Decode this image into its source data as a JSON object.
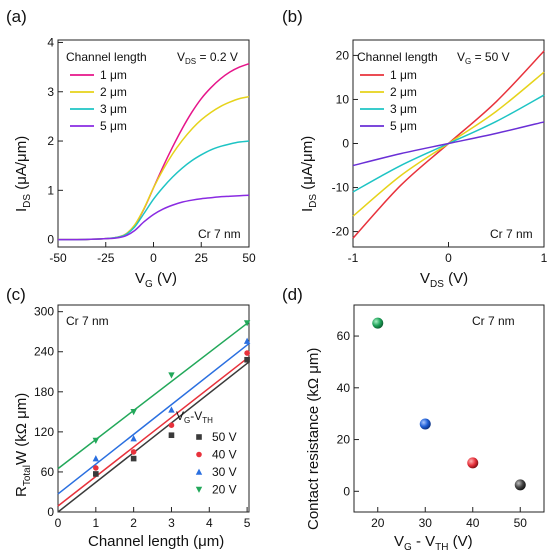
{
  "chart_data": [
    {
      "type": "line",
      "panel_label": "(a)",
      "xlabel": "V",
      "xlabel_sub": "G",
      "xlabel_unit": " (V)",
      "ylabel": "I",
      "ylabel_sub": "DS",
      "ylabel_unit": " (μA/μm)",
      "xlim": [
        -50,
        50
      ],
      "ylim": [
        -0.15,
        4.05
      ],
      "xticks": [
        "-50",
        "-25",
        "0",
        "25",
        "50"
      ],
      "xtick_values": [
        -50,
        -25,
        0,
        25,
        50
      ],
      "yticks": [
        "0",
        "1",
        "2",
        "3",
        "4"
      ],
      "ytick_values": [
        0,
        1,
        2,
        3,
        4
      ],
      "legend_title": "Channel length",
      "condition_text": "V",
      "condition_sub": "DS",
      "condition_value": " = 0.2 V",
      "note": "Cr 7 nm",
      "x": [
        -50,
        -40,
        -30,
        -25,
        -20,
        -15,
        -10,
        -5,
        0,
        5,
        10,
        15,
        20,
        25,
        30,
        35,
        40,
        45,
        50
      ],
      "series": [
        {
          "name": "1 μm",
          "color": "#e6158a",
          "values": [
            0.0,
            0.0,
            0.01,
            0.02,
            0.04,
            0.1,
            0.28,
            0.62,
            1.05,
            1.48,
            1.88,
            2.25,
            2.58,
            2.86,
            3.08,
            3.26,
            3.4,
            3.5,
            3.57
          ]
        },
        {
          "name": "2 μm",
          "color": "#e6d31a",
          "values": [
            0.0,
            0.0,
            0.01,
            0.02,
            0.04,
            0.1,
            0.29,
            0.63,
            1.05,
            1.42,
            1.74,
            2.01,
            2.24,
            2.43,
            2.58,
            2.7,
            2.79,
            2.86,
            2.9
          ]
        },
        {
          "name": "3 μm",
          "color": "#1ec4c4",
          "values": [
            0.0,
            0.0,
            0.01,
            0.02,
            0.04,
            0.09,
            0.25,
            0.53,
            0.82,
            1.06,
            1.27,
            1.45,
            1.6,
            1.72,
            1.82,
            1.89,
            1.94,
            1.98,
            2.0
          ]
        },
        {
          "name": "5 μm",
          "color": "#8a2be2",
          "values": [
            0.0,
            0.0,
            0.01,
            0.02,
            0.03,
            0.07,
            0.18,
            0.36,
            0.51,
            0.62,
            0.7,
            0.76,
            0.8,
            0.83,
            0.85,
            0.87,
            0.88,
            0.89,
            0.9
          ]
        }
      ]
    },
    {
      "type": "line",
      "panel_label": "(b)",
      "xlabel": "V",
      "xlabel_sub": "DS",
      "xlabel_unit": " (V)",
      "ylabel": "I",
      "ylabel_sub": "DS",
      "ylabel_unit": " (μA/μm)",
      "xlim": [
        -1,
        1
      ],
      "ylim": [
        -23.5,
        23.5
      ],
      "xticks": [
        "-1",
        "0",
        "1"
      ],
      "xtick_values": [
        -1,
        0,
        1
      ],
      "yticks": [
        "-20",
        "-10",
        "0",
        "10",
        "20"
      ],
      "ytick_values": [
        -20,
        -10,
        0,
        10,
        20
      ],
      "legend_title": "Channel length",
      "condition_text": "V",
      "condition_sub": "G",
      "condition_value": " = 50 V",
      "note": "Cr 7 nm",
      "x": [
        -1,
        -0.5,
        0,
        0.5,
        1
      ],
      "series": [
        {
          "name": "1 μm",
          "color": "#e8323c",
          "values": [
            -21.5,
            -9.5,
            0,
            9.5,
            21.0
          ]
        },
        {
          "name": "2 μm",
          "color": "#e6d31a",
          "values": [
            -16.5,
            -7.3,
            0,
            7.3,
            16.2
          ]
        },
        {
          "name": "3 μm",
          "color": "#1ec4c4",
          "values": [
            -11.0,
            -5.0,
            0,
            5.0,
            11.0
          ]
        },
        {
          "name": "5 μm",
          "color": "#6a2fd6",
          "values": [
            -5.0,
            -2.3,
            0,
            2.3,
            4.9
          ]
        }
      ]
    },
    {
      "type": "scatter",
      "panel_label": "(c)",
      "xlabel": "Channel length (μm)",
      "ylabel": "R",
      "ylabel_sub": "Total",
      "ylabel_unit": "W (kΩ μm)",
      "xlim": [
        0,
        5.05
      ],
      "ylim": [
        0,
        310
      ],
      "xticks": [
        "0",
        "1",
        "2",
        "3",
        "4",
        "5"
      ],
      "xtick_values": [
        0,
        1,
        2,
        3,
        4,
        5
      ],
      "yticks": [
        "0",
        "60",
        "120",
        "180",
        "240",
        "300"
      ],
      "ytick_values": [
        0,
        60,
        120,
        180,
        240,
        300
      ],
      "legend_title": "V",
      "legend_title_sub": "G",
      "legend_title_rest": "-V",
      "legend_title_sub2": "TH",
      "note": "Cr 7 nm",
      "x": [
        1,
        2,
        3,
        5
      ],
      "series": [
        {
          "name": "50 V",
          "color": "#3a3a3a",
          "marker": "square",
          "values": [
            57,
            80,
            115,
            228
          ],
          "fit": [
            0,
            44.5
          ]
        },
        {
          "name": "40 V",
          "color": "#e8323c",
          "marker": "circle",
          "values": [
            66,
            90,
            130,
            238
          ],
          "fit": [
            9,
            44.2
          ]
        },
        {
          "name": "30 V",
          "color": "#2a6fe0",
          "marker": "triangle-up",
          "values": [
            80,
            110,
            153,
            256
          ],
          "fit": [
            27,
            44.6
          ]
        },
        {
          "name": "20 V",
          "color": "#22a85a",
          "marker": "triangle-down",
          "values": [
            107,
            150,
            205,
            283
          ],
          "fit": [
            65,
            43.5
          ]
        }
      ]
    },
    {
      "type": "scatter",
      "panel_label": "(d)",
      "xlabel": "V",
      "xlabel_sub": "G",
      "xlabel_rest": " - V",
      "xlabel_sub2": "TH",
      "xlabel_unit": " (V)",
      "ylabel": "Contact resistance (kΩ μm)",
      "xlim": [
        15,
        55
      ],
      "ylim": [
        -8,
        72
      ],
      "xticks": [
        "20",
        "30",
        "40",
        "50"
      ],
      "xtick_values": [
        20,
        30,
        40,
        50
      ],
      "yticks": [
        "0",
        "20",
        "40",
        "60"
      ],
      "ytick_values": [
        0,
        20,
        40,
        60
      ],
      "note": "Cr 7 nm",
      "x": [
        20,
        30,
        40,
        50
      ],
      "values": [
        65,
        26,
        11,
        2.5
      ],
      "colors": [
        "#1fa35a",
        "#1f5fd6",
        "#e8323c",
        "#444444"
      ]
    }
  ]
}
